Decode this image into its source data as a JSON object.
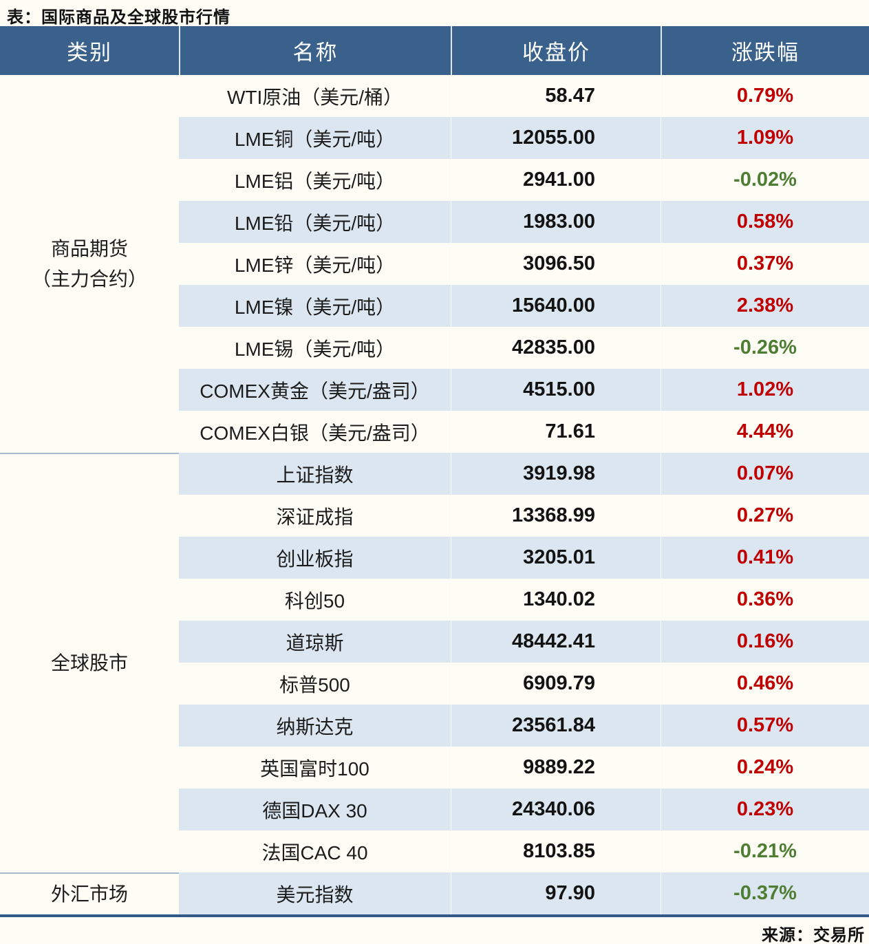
{
  "title": "表：国际商品及全球股市行情",
  "source": "来源：交易所",
  "colors": {
    "header_bg": "#3A618B",
    "row_alt_bg": "#DCE6F1",
    "row_bg": "#FDFDF6",
    "bottom_border": "#315A88",
    "category_divider": "#A8B9CE",
    "up_text": "#C00000",
    "down_text": "#4E7D33",
    "header_text": "#FFFFFF"
  },
  "category_cells": [
    {
      "line1": "商品期货",
      "line2": "（主力合约）",
      "rowspan": 9
    },
    {
      "line1": "全球股市",
      "line2": "",
      "rowspan": 10
    },
    {
      "line1": "外汇市场",
      "line2": "",
      "rowspan": 1
    }
  ],
  "chart_data": {
    "type": "table",
    "title": "国际商品及全球股市行情",
    "columns": [
      "类别",
      "名称",
      "收盘价",
      "涨跌幅"
    ],
    "rows": [
      {
        "category": "商品期货（主力合约）",
        "name": "WTI原油（美元/桶）",
        "close": "58.47",
        "change_pct": "0.79%",
        "direction": "up"
      },
      {
        "category": "商品期货（主力合约）",
        "name": "LME铜（美元/吨）",
        "close": "12055.00",
        "change_pct": "1.09%",
        "direction": "up"
      },
      {
        "category": "商品期货（主力合约）",
        "name": "LME铝（美元/吨）",
        "close": "2941.00",
        "change_pct": "-0.02%",
        "direction": "down"
      },
      {
        "category": "商品期货（主力合约）",
        "name": "LME铅（美元/吨）",
        "close": "1983.00",
        "change_pct": "0.58%",
        "direction": "up"
      },
      {
        "category": "商品期货（主力合约）",
        "name": "LME锌（美元/吨）",
        "close": "3096.50",
        "change_pct": "0.37%",
        "direction": "up"
      },
      {
        "category": "商品期货（主力合约）",
        "name": "LME镍（美元/吨）",
        "close": "15640.00",
        "change_pct": "2.38%",
        "direction": "up"
      },
      {
        "category": "商品期货（主力合约）",
        "name": "LME锡（美元/吨）",
        "close": "42835.00",
        "change_pct": "-0.26%",
        "direction": "down"
      },
      {
        "category": "商品期货（主力合约）",
        "name": "COMEX黄金（美元/盎司）",
        "close": "4515.00",
        "change_pct": "1.02%",
        "direction": "up"
      },
      {
        "category": "商品期货（主力合约）",
        "name": "COMEX白银（美元/盎司）",
        "close": "71.61",
        "change_pct": "4.44%",
        "direction": "up"
      },
      {
        "category": "全球股市",
        "name": "上证指数",
        "close": "3919.98",
        "change_pct": "0.07%",
        "direction": "up"
      },
      {
        "category": "全球股市",
        "name": "深证成指",
        "close": "13368.99",
        "change_pct": "0.27%",
        "direction": "up"
      },
      {
        "category": "全球股市",
        "name": "创业板指",
        "close": "3205.01",
        "change_pct": "0.41%",
        "direction": "up"
      },
      {
        "category": "全球股市",
        "name": "科创50",
        "close": "1340.02",
        "change_pct": "0.36%",
        "direction": "up"
      },
      {
        "category": "全球股市",
        "name": "道琼斯",
        "close": "48442.41",
        "change_pct": "0.16%",
        "direction": "up"
      },
      {
        "category": "全球股市",
        "name": "标普500",
        "close": "6909.79",
        "change_pct": "0.46%",
        "direction": "up"
      },
      {
        "category": "全球股市",
        "name": "纳斯达克",
        "close": "23561.84",
        "change_pct": "0.57%",
        "direction": "up"
      },
      {
        "category": "全球股市",
        "name": "英国富时100",
        "close": "9889.22",
        "change_pct": "0.24%",
        "direction": "up"
      },
      {
        "category": "全球股市",
        "name": "德国DAX 30",
        "close": "24340.06",
        "change_pct": "0.23%",
        "direction": "up"
      },
      {
        "category": "全球股市",
        "name": "法国CAC 40",
        "close": "8103.85",
        "change_pct": "-0.21%",
        "direction": "down"
      },
      {
        "category": "外汇市场",
        "name": "美元指数",
        "close": "97.90",
        "change_pct": "-0.37%",
        "direction": "down"
      }
    ]
  }
}
